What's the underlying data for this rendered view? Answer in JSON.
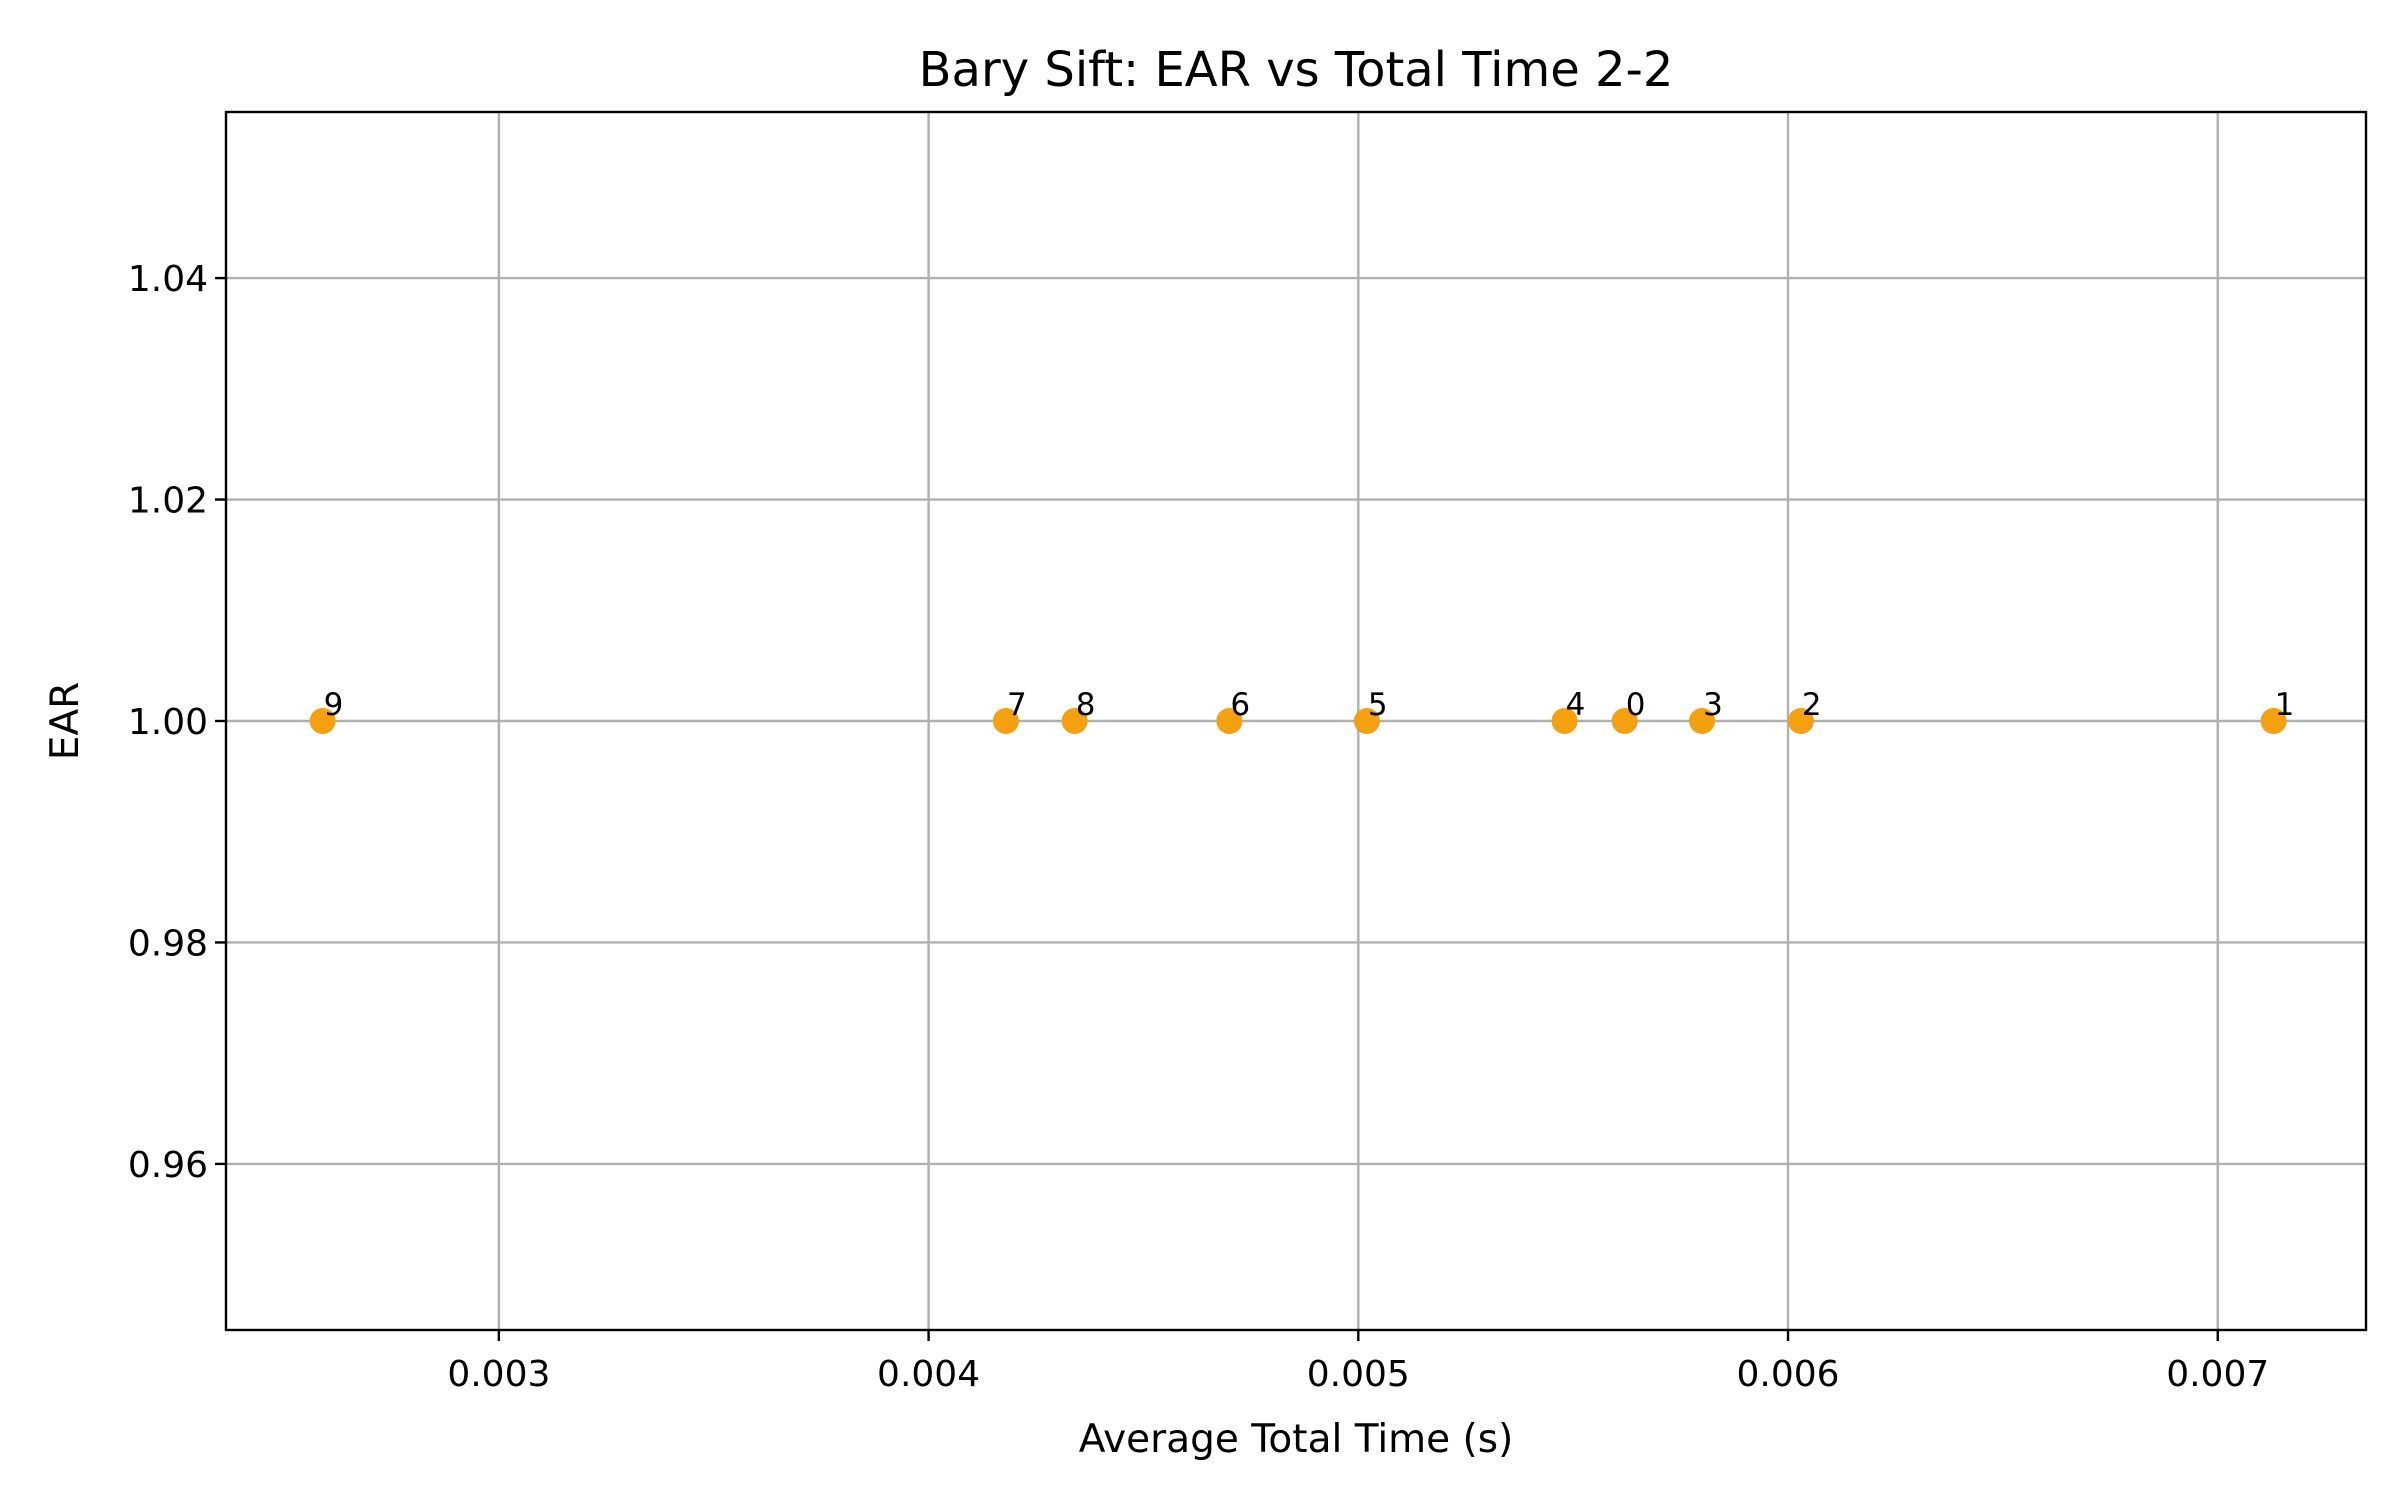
{
  "chart_data": {
    "type": "scatter",
    "title": "Bary Sift: EAR vs Total Time 2-2",
    "xlabel": "Average Total Time (s)",
    "ylabel": "EAR",
    "xlim": [
      0.002365,
      0.007345
    ],
    "ylim": [
      0.945,
      1.055
    ],
    "xticks": [
      0.003,
      0.004,
      0.005,
      0.006,
      0.007
    ],
    "xtick_labels": [
      "0.003",
      "0.004",
      "0.005",
      "0.006",
      "0.007"
    ],
    "yticks": [
      0.96,
      0.98,
      1.0,
      1.02,
      1.04
    ],
    "ytick_labels": [
      "0.96",
      "0.98",
      "1.00",
      "1.02",
      "1.04"
    ],
    "grid": true,
    "point_color": "#f5a00f",
    "points": [
      {
        "label": "0",
        "x": 0.00562,
        "y": 1.0
      },
      {
        "label": "1",
        "x": 0.00713,
        "y": 1.0
      },
      {
        "label": "2",
        "x": 0.00603,
        "y": 1.0
      },
      {
        "label": "3",
        "x": 0.0058,
        "y": 1.0
      },
      {
        "label": "4",
        "x": 0.00548,
        "y": 1.0
      },
      {
        "label": "5",
        "x": 0.00502,
        "y": 1.0
      },
      {
        "label": "6",
        "x": 0.0047,
        "y": 1.0
      },
      {
        "label": "7",
        "x": 0.00418,
        "y": 1.0
      },
      {
        "label": "8",
        "x": 0.00434,
        "y": 1.0
      },
      {
        "label": "9",
        "x": 0.00259,
        "y": 1.0
      }
    ]
  }
}
